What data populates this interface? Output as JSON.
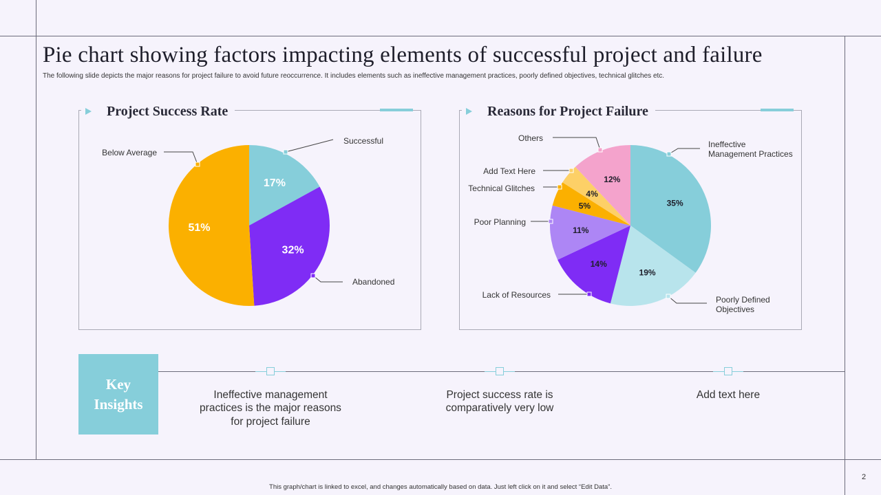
{
  "title": "Pie chart showing factors impacting elements of successful project and failure",
  "subtitle": "The following slide depicts the major reasons for project failure to avoid future reoccurrence. It includes elements such as ineffective management practices, poorly defined objectives, technical glitches etc.",
  "accent_color": "#86ceda",
  "chart_data": [
    {
      "type": "pie",
      "title": "Project Success Rate",
      "slices": [
        {
          "label": "Successful",
          "value": 17,
          "display": "17%",
          "color": "#86ceda",
          "text_color": "#ffffff"
        },
        {
          "label": "Abandoned",
          "value": 32,
          "display": "32%",
          "color": "#7f2cf5",
          "text_color": "#ffffff"
        },
        {
          "label": "Below Average",
          "value": 51,
          "display": "51%",
          "color": "#fbb000",
          "text_color": "#ffffff"
        }
      ]
    },
    {
      "type": "pie",
      "title": "Reasons for Project Failure",
      "slices": [
        {
          "label": "Ineffective Management Practices",
          "value": 35,
          "display": "35%",
          "color": "#86ceda",
          "text_color": "#1e1e2a"
        },
        {
          "label": "Poorly Defined Objectives",
          "value": 19,
          "display": "19%",
          "color": "#b8e4ec",
          "text_color": "#1e1e2a"
        },
        {
          "label": "Lack of Resources",
          "value": 14,
          "display": "14%",
          "color": "#7f2cf5",
          "text_color": "#1e1e2a"
        },
        {
          "label": "Poor Planning",
          "value": 11,
          "display": "11%",
          "color": "#ad86f5",
          "text_color": "#1e1e2a"
        },
        {
          "label": "Technical Glitches",
          "value": 5,
          "display": "5%",
          "color": "#fbb000",
          "text_color": "#1e1e2a"
        },
        {
          "label": "Add Text Here",
          "value": 4,
          "display": "4%",
          "color": "#fdd067",
          "text_color": "#1e1e2a"
        },
        {
          "label": "Others",
          "value": 12,
          "display": "12%",
          "color": "#f4a3cc",
          "text_color": "#1e1e2a"
        }
      ]
    }
  ],
  "insights": {
    "key_label": "Key\nInsights",
    "items": [
      "Ineffective management practices is the major reasons for project failure",
      "Project success rate is comparatively very low",
      "Add text here"
    ]
  },
  "footer_note": "This graph/chart is linked to excel, and changes automatically based on data. Just left click on it and select “Edit Data”.",
  "page_number": "2"
}
